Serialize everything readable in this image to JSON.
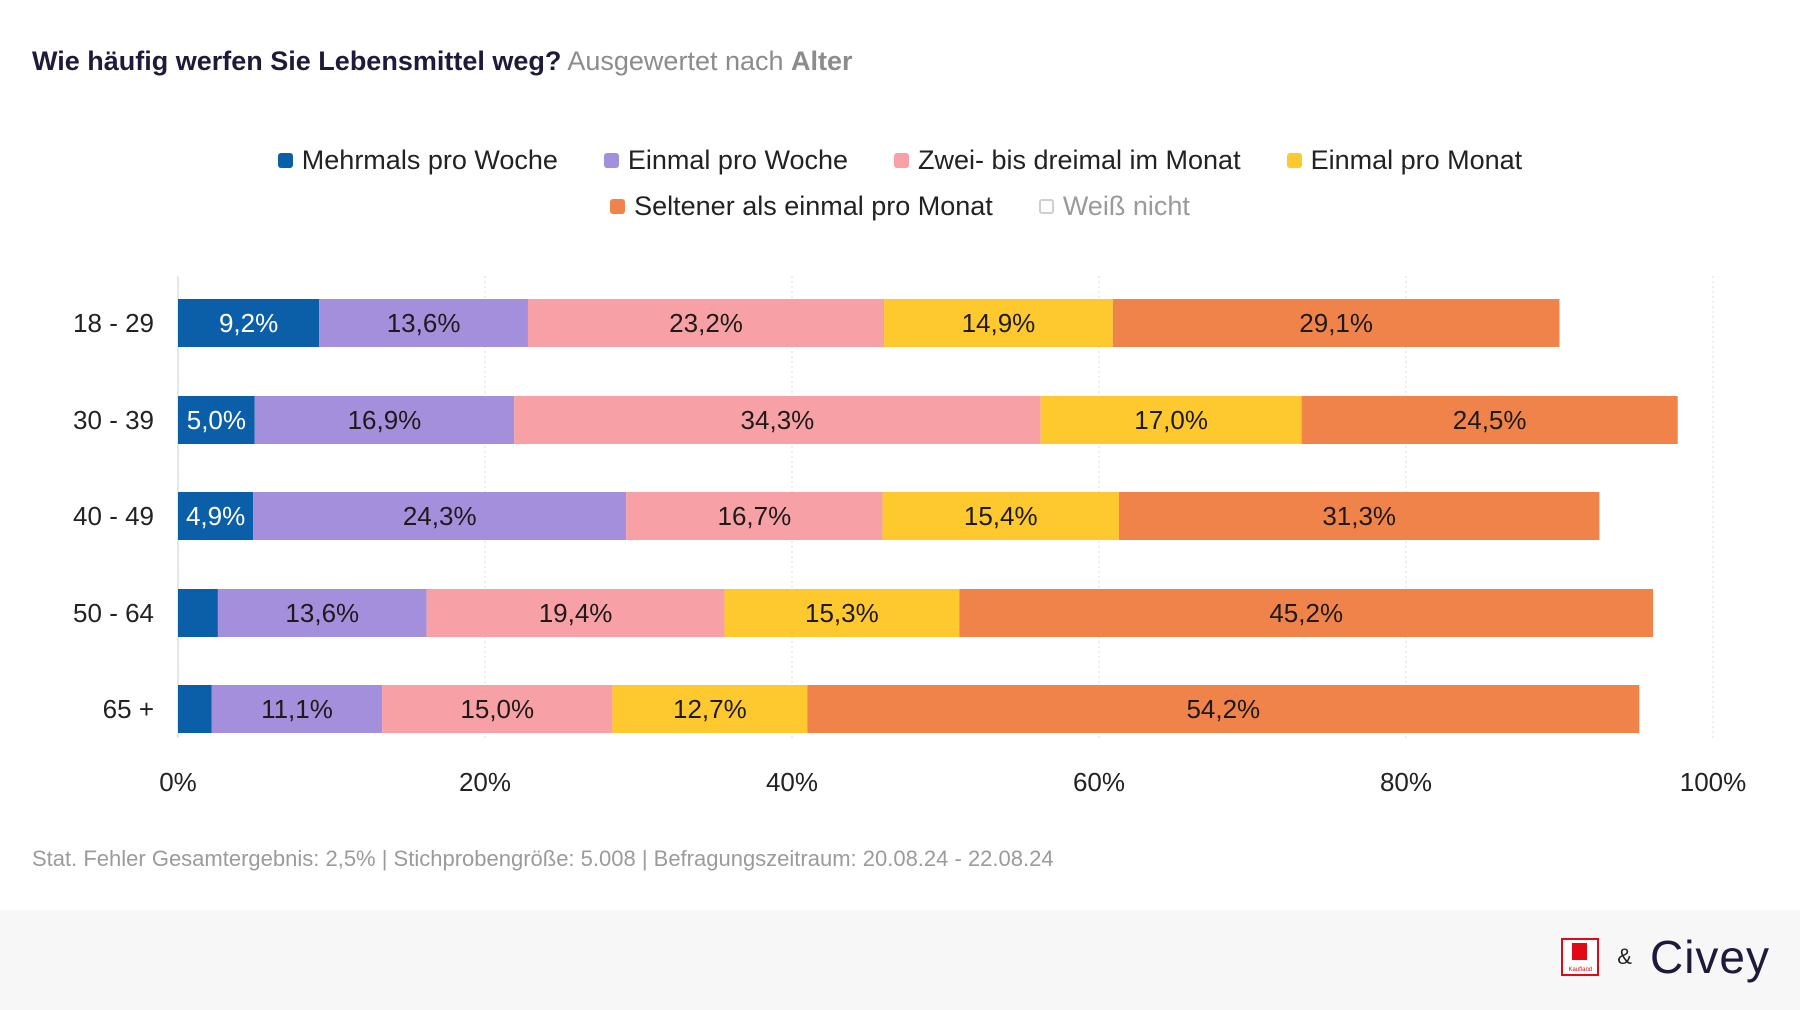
{
  "header": {
    "question": "Wie häufig werfen Sie Lebensmittel weg?",
    "sub_prefix": "Ausgewertet nach",
    "sub_dimension": "Alter"
  },
  "colors": {
    "mehrmals": "#0b5fa8",
    "einmal_woche": "#a48fdc",
    "zwei_drei": "#f7a1a6",
    "einmal_monat": "#fdc92e",
    "seltener": "#f0834a",
    "weiss_nicht": "#d6d6d6",
    "grid": "#dddddd"
  },
  "chart_data": {
    "type": "bar",
    "orientation": "horizontal",
    "stacked": true,
    "categories": [
      "18 - 29",
      "30 - 39",
      "40 - 49",
      "50 - 64",
      "65 +"
    ],
    "series": [
      {
        "name": "Mehrmals pro Woche",
        "values": [
          9.2,
          5.0,
          4.9,
          2.6,
          2.2
        ],
        "labels": [
          "9,2%",
          "5,0%",
          "4,9%",
          "",
          ""
        ]
      },
      {
        "name": "Einmal pro Woche",
        "values": [
          13.6,
          16.9,
          24.3,
          13.6,
          11.1
        ],
        "labels": [
          "13,6%",
          "16,9%",
          "24,3%",
          "13,6%",
          "11,1%"
        ]
      },
      {
        "name": "Zwei- bis dreimal im Monat",
        "values": [
          23.2,
          34.3,
          16.7,
          19.4,
          15.0
        ],
        "labels": [
          "23,2%",
          "34,3%",
          "16,7%",
          "19,4%",
          "15,0%"
        ]
      },
      {
        "name": "Einmal pro Monat",
        "values": [
          14.9,
          17.0,
          15.4,
          15.3,
          12.7
        ],
        "labels": [
          "14,9%",
          "17,0%",
          "15,4%",
          "15,3%",
          "12,7%"
        ]
      },
      {
        "name": "Seltener als einmal pro Monat",
        "values": [
          29.1,
          24.5,
          31.3,
          45.2,
          54.2
        ],
        "labels": [
          "29,1%",
          "24,5%",
          "31,3%",
          "45,2%",
          "54,2%"
        ]
      },
      {
        "name": "Weiß nicht",
        "values": [
          0,
          0,
          0,
          0,
          0
        ],
        "labels": [
          "",
          "",
          "",
          "",
          ""
        ]
      }
    ],
    "xlim": [
      0,
      100
    ],
    "x_ticks": [
      0,
      20,
      40,
      60,
      80,
      100
    ],
    "x_tick_labels": [
      "0%",
      "20%",
      "40%",
      "60%",
      "80%",
      "100%"
    ],
    "grid": true,
    "legend_position": "top-center"
  },
  "legend": [
    {
      "label": "Mehrmals pro Woche",
      "color_key": "mehrmals"
    },
    {
      "label": "Einmal pro Woche",
      "color_key": "einmal_woche"
    },
    {
      "label": "Zwei- bis dreimal im Monat",
      "color_key": "zwei_drei"
    },
    {
      "label": "Einmal pro Monat",
      "color_key": "einmal_monat"
    },
    {
      "label": "Seltener als einmal pro Monat",
      "color_key": "seltener"
    },
    {
      "label": "Weiß nicht",
      "color_key": "weiss_nicht"
    }
  ],
  "footnote": "Stat. Fehler Gesamtergebnis: 2,5% | Stichprobengröße: 5.008 | Befragungszeitraum: 20.08.24 - 22.08.24",
  "brand": {
    "kaufland_word": "Kaufland",
    "amp": "&",
    "civey": "Civey"
  }
}
